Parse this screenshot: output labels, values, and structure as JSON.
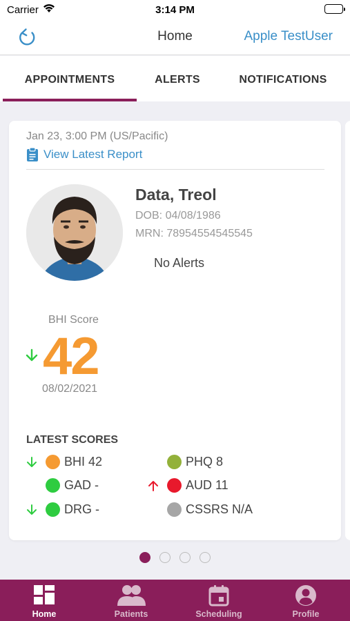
{
  "status_bar": {
    "carrier": "Carrier",
    "time": "3:14 PM"
  },
  "nav": {
    "title": "Home",
    "user": "Apple TestUser"
  },
  "tabs": [
    {
      "label": "APPOINTMENTS",
      "active": true
    },
    {
      "label": "ALERTS",
      "active": false
    },
    {
      "label": "NOTIFICATIONS",
      "active": false
    }
  ],
  "appointment": {
    "datetime": "Jan 23, 3:00 PM (US/Pacific)",
    "report_link": "View Latest Report",
    "patient": {
      "name": "Data, Treol",
      "dob": "DOB: 04/08/1986",
      "mrn": "MRN: 78954554545545",
      "alerts": "No Alerts"
    },
    "bhi": {
      "label": "BHI Score",
      "value": "42",
      "date": "08/02/2021",
      "trend": "down"
    },
    "latest_scores_title": "LATEST SCORES",
    "scores": [
      {
        "label": "BHI 42",
        "color": "#f59a32",
        "trend": "down"
      },
      {
        "label": "PHQ 8",
        "color": "#93b13a",
        "trend": "none"
      },
      {
        "label": "GAD -",
        "color": "#2ecc40",
        "trend": "none"
      },
      {
        "label": "AUD 11",
        "color": "#e8192c",
        "trend": "up"
      },
      {
        "label": "DRG -",
        "color": "#2ecc40",
        "trend": "down"
      },
      {
        "label": "CSSRS N/A",
        "color": "#a6a6a6",
        "trend": "none"
      }
    ]
  },
  "pager": {
    "page_count": 4,
    "current_page": 1
  },
  "tabbar": [
    {
      "label": "Home",
      "icon": "home-grid-icon",
      "active": true
    },
    {
      "label": "Patients",
      "icon": "patients-icon",
      "active": false
    },
    {
      "label": "Scheduling",
      "icon": "calendar-icon",
      "active": false
    },
    {
      "label": "Profile",
      "icon": "profile-icon",
      "active": false
    }
  ],
  "colors": {
    "brand": "#8a1e5a",
    "link": "#3a8fc8",
    "bhi_score": "#f59a32",
    "trend_down": "#2ecc40",
    "trend_up": "#e8192c"
  }
}
